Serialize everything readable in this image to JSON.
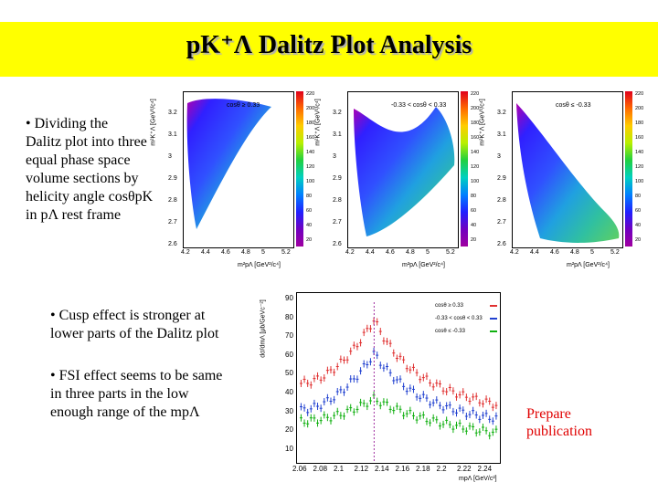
{
  "title": "pΚ⁺Λ Dalitz Plot Analysis",
  "bullets": {
    "b1": [
      "•  Dividing the",
      "Dalitz plot into three",
      "equal phase space",
      "volume sections  by",
      "helicity angle cosθpΚ",
      "in pΛ rest frame"
    ],
    "b2": [
      "•  Cusp effect is stronger at",
      "lower parts of the Dalitz plot"
    ],
    "b3": [
      "•  FSI effect seems to be same",
      "in three parts in the low",
      "enough range of the mpΛ"
    ]
  },
  "prepare": [
    "Prepare",
    "publication"
  ],
  "dalitz": {
    "ylabel": "m²K⁺Λ [GeV²/c⁴]",
    "xlabel": "m²pΛ [GeV²/c⁴]",
    "xticks": [
      "4.2",
      "4.4",
      "4.6",
      "4.8",
      "5",
      "5.2"
    ],
    "yticks": [
      "3.2",
      "3.1",
      "3",
      "2.9",
      "2.8",
      "2.7",
      "2.6"
    ],
    "zticks": [
      "220",
      "200",
      "180",
      "160",
      "140",
      "120",
      "100",
      "80",
      "60",
      "40",
      "20"
    ],
    "cuts": [
      "cosθ ≥ 0.33",
      "-0.33 < cosθ < 0.33",
      "cosθ ≤ -0.33"
    ]
  },
  "spectrum": {
    "ylabel": "dσ/dmΛ [μb/GeVc⁻²]",
    "xlabel": "mpΛ [GeV/c²]",
    "yticks": [
      "90",
      "80",
      "70",
      "60",
      "50",
      "40",
      "30",
      "20",
      "10"
    ],
    "xticks": [
      "2.06",
      "2.08",
      "2.1",
      "2.12",
      "2.14",
      "2.16",
      "2.18",
      "2.2",
      "2.22",
      "2.24"
    ],
    "legend": [
      "cosθ ≥ 0.33",
      "-0.33 < cosθ < 0.33",
      "cosθ ≤ -0.33"
    ],
    "colors": [
      "#e03030",
      "#2040d0",
      "#10b010"
    ]
  }
}
